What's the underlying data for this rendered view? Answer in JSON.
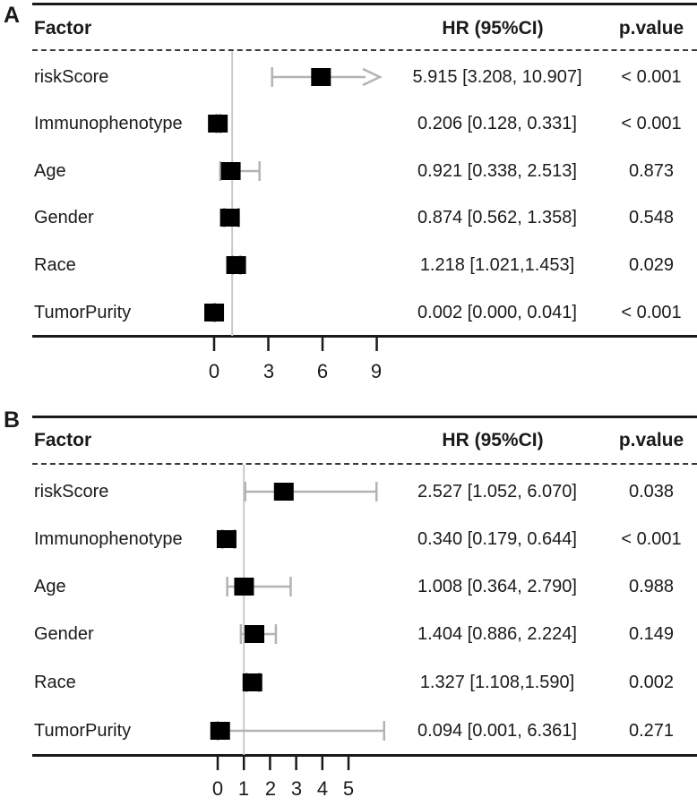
{
  "colors": {
    "marker": "#000000",
    "whisker": "#b3b3b3",
    "reference_line": "#c9c9c9",
    "axis": "#1a1a1a",
    "text": "#1a1a1a"
  },
  "chart_data": [
    {
      "type": "scatter",
      "variant": "forest-plot",
      "panel_label": "A",
      "columns": {
        "factor": "Factor",
        "hr": "HR (95%CI)",
        "p": "p.value"
      },
      "rows": [
        {
          "factor": "riskScore",
          "hr_text": "5.915 [3.208, 10.907]",
          "p_value": "< 0.001",
          "hr": 5.915,
          "ci_low": 3.208,
          "ci_high": 10.907,
          "arrow_right": true
        },
        {
          "factor": "Immunophenotype",
          "hr_text": "0.206 [0.128, 0.331]",
          "p_value": "< 0.001",
          "hr": 0.206,
          "ci_low": 0.128,
          "ci_high": 0.331,
          "arrow_right": false
        },
        {
          "factor": "Age",
          "hr_text": "0.921 [0.338, 2.513]",
          "p_value": "0.873",
          "hr": 0.921,
          "ci_low": 0.338,
          "ci_high": 2.513,
          "arrow_right": false
        },
        {
          "factor": "Gender",
          "hr_text": "0.874 [0.562, 1.358]",
          "p_value": "0.548",
          "hr": 0.874,
          "ci_low": 0.562,
          "ci_high": 1.358,
          "arrow_right": false
        },
        {
          "factor": "Race",
          "hr_text": "1.218 [1.021,1.453]",
          "p_value": "0.029",
          "hr": 1.218,
          "ci_low": 1.021,
          "ci_high": 1.453,
          "arrow_right": false
        },
        {
          "factor": "TumorPurity",
          "hr_text": "0.002 [0.000, 0.041]",
          "p_value": "< 0.001",
          "hr": 0.002,
          "ci_low": 0.0,
          "ci_high": 0.041,
          "arrow_right": false
        }
      ],
      "x_ticks": [
        0,
        3,
        6,
        9
      ],
      "reference_line_x": 1,
      "grid": false,
      "note": "upper CI of riskScore exceeds the shown axis range and is drawn as a right-pointing arrow"
    },
    {
      "type": "scatter",
      "variant": "forest-plot",
      "panel_label": "B",
      "columns": {
        "factor": "Factor",
        "hr": "HR (95%CI)",
        "p": "p.value"
      },
      "rows": [
        {
          "factor": "riskScore",
          "hr_text": "2.527 [1.052, 6.070]",
          "p_value": "0.038",
          "hr": 2.527,
          "ci_low": 1.052,
          "ci_high": 6.07,
          "arrow_right": false
        },
        {
          "factor": "Immunophenotype",
          "hr_text": "0.340 [0.179, 0.644]",
          "p_value": "< 0.001",
          "hr": 0.34,
          "ci_low": 0.179,
          "ci_high": 0.644,
          "arrow_right": false
        },
        {
          "factor": "Age",
          "hr_text": "1.008 [0.364, 2.790]",
          "p_value": "0.988",
          "hr": 1.008,
          "ci_low": 0.364,
          "ci_high": 2.79,
          "arrow_right": false
        },
        {
          "factor": "Gender",
          "hr_text": "1.404 [0.886, 2.224]",
          "p_value": "0.149",
          "hr": 1.404,
          "ci_low": 0.886,
          "ci_high": 2.224,
          "arrow_right": false
        },
        {
          "factor": "Race",
          "hr_text": "1.327 [1.108,1.590]",
          "p_value": "0.002",
          "hr": 1.327,
          "ci_low": 1.108,
          "ci_high": 1.59,
          "arrow_right": false
        },
        {
          "factor": "TumorPurity",
          "hr_text": "0.094 [0.001, 6.361]",
          "p_value": "0.271",
          "hr": 0.094,
          "ci_low": 0.001,
          "ci_high": 6.361,
          "arrow_right": false
        }
      ],
      "x_ticks": [
        0,
        1,
        2,
        3,
        4,
        5
      ],
      "reference_line_x": 1,
      "grid": false
    }
  ]
}
